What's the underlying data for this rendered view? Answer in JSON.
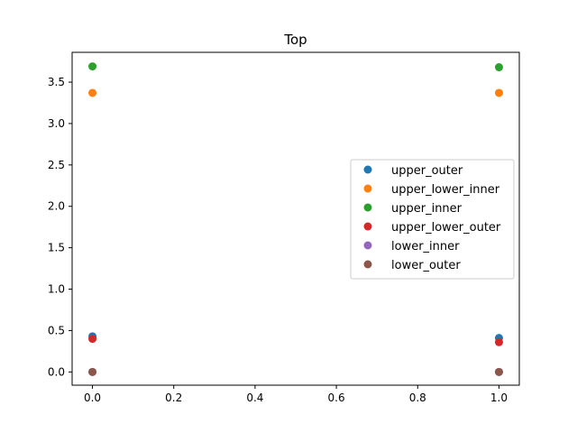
{
  "chart_data": {
    "type": "scatter",
    "title": "Top",
    "xlabel": "",
    "ylabel": "",
    "xlim": [
      -0.05,
      1.05
    ],
    "ylim": [
      -0.16,
      3.86
    ],
    "xticks": [
      0.0,
      0.2,
      0.4,
      0.6,
      0.8,
      1.0
    ],
    "xtick_labels": [
      "0.0",
      "0.2",
      "0.4",
      "0.6",
      "0.8",
      "1.0"
    ],
    "yticks": [
      0.0,
      0.5,
      1.0,
      1.5,
      2.0,
      2.5,
      3.0,
      3.5
    ],
    "ytick_labels": [
      "0.0",
      "0.5",
      "1.0",
      "1.5",
      "2.0",
      "2.5",
      "3.0",
      "3.5"
    ],
    "grid": false,
    "legend_position": "center-right",
    "series": [
      {
        "name": "upper_outer",
        "color": "#1f77b4",
        "x": [
          0,
          1
        ],
        "y": [
          0.43,
          0.41
        ]
      },
      {
        "name": "upper_lower_inner",
        "color": "#ff7f0e",
        "x": [
          0,
          1
        ],
        "y": [
          3.37,
          3.37
        ]
      },
      {
        "name": "upper_inner",
        "color": "#2ca02c",
        "x": [
          0,
          1
        ],
        "y": [
          3.69,
          3.68
        ]
      },
      {
        "name": "upper_lower_outer",
        "color": "#d62728",
        "x": [
          0,
          1
        ],
        "y": [
          0.4,
          0.36
        ]
      },
      {
        "name": "lower_inner",
        "color": "#9467bd",
        "x": [
          0,
          1
        ],
        "y": [
          0.0,
          0.0
        ]
      },
      {
        "name": "lower_outer",
        "color": "#8c564b",
        "x": [
          0,
          1
        ],
        "y": [
          0.0,
          0.0
        ]
      }
    ]
  }
}
